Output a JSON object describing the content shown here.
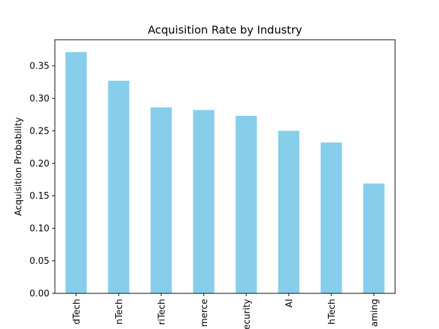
{
  "chart_data": {
    "type": "bar",
    "title": "Acquisition Rate by Industry",
    "xlabel": "",
    "ylabel": "Acquisition Probability",
    "categories": [
      "dTech",
      "nTech",
      "riTech",
      "merce",
      "ecurity",
      "AI",
      "hTech",
      "aming"
    ],
    "values": [
      0.371,
      0.327,
      0.286,
      0.282,
      0.273,
      0.25,
      0.232,
      0.169
    ],
    "ylim": [
      0,
      0.39
    ],
    "yticks": [
      0.0,
      0.05,
      0.1,
      0.15,
      0.2,
      0.25,
      0.3,
      0.35
    ],
    "ytick_labels": [
      "0.00",
      "0.05",
      "0.10",
      "0.15",
      "0.20",
      "0.25",
      "0.30",
      "0.35"
    ],
    "bar_color": "#87ceeb",
    "grid": false,
    "legend": "none"
  }
}
